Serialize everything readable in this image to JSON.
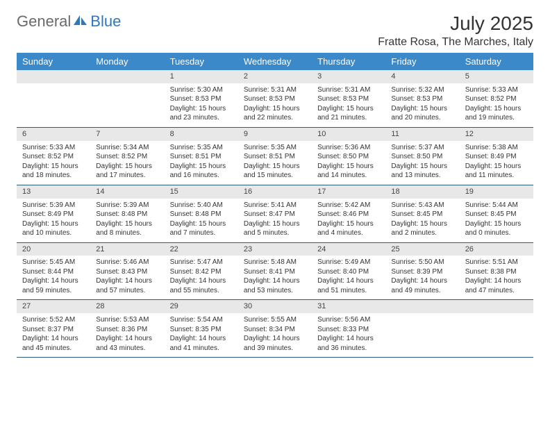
{
  "logo": {
    "text1": "General",
    "text2": "Blue"
  },
  "title": "July 2025",
  "location": "Fratte Rosa, The Marches, Italy",
  "colors": {
    "header_bg": "#3b89c9",
    "header_text": "#ffffff",
    "daynum_bg": "#e8e8e8",
    "week_border": "#2f5a7a",
    "body_text": "#333333",
    "logo_gray": "#6a6a6a",
    "logo_blue": "#2f78bd",
    "background": "#ffffff"
  },
  "typography": {
    "title_fontsize": 28,
    "location_fontsize": 16,
    "dayheader_fontsize": 13,
    "daynum_fontsize": 11,
    "cell_fontsize": 10,
    "logo_fontsize": 22
  },
  "day_names": [
    "Sunday",
    "Monday",
    "Tuesday",
    "Wednesday",
    "Thursday",
    "Friday",
    "Saturday"
  ],
  "weeks": [
    [
      null,
      null,
      {
        "n": "1",
        "sr": "Sunrise: 5:30 AM",
        "ss": "Sunset: 8:53 PM",
        "d1": "Daylight: 15 hours",
        "d2": "and 23 minutes."
      },
      {
        "n": "2",
        "sr": "Sunrise: 5:31 AM",
        "ss": "Sunset: 8:53 PM",
        "d1": "Daylight: 15 hours",
        "d2": "and 22 minutes."
      },
      {
        "n": "3",
        "sr": "Sunrise: 5:31 AM",
        "ss": "Sunset: 8:53 PM",
        "d1": "Daylight: 15 hours",
        "d2": "and 21 minutes."
      },
      {
        "n": "4",
        "sr": "Sunrise: 5:32 AM",
        "ss": "Sunset: 8:53 PM",
        "d1": "Daylight: 15 hours",
        "d2": "and 20 minutes."
      },
      {
        "n": "5",
        "sr": "Sunrise: 5:33 AM",
        "ss": "Sunset: 8:52 PM",
        "d1": "Daylight: 15 hours",
        "d2": "and 19 minutes."
      }
    ],
    [
      {
        "n": "6",
        "sr": "Sunrise: 5:33 AM",
        "ss": "Sunset: 8:52 PM",
        "d1": "Daylight: 15 hours",
        "d2": "and 18 minutes."
      },
      {
        "n": "7",
        "sr": "Sunrise: 5:34 AM",
        "ss": "Sunset: 8:52 PM",
        "d1": "Daylight: 15 hours",
        "d2": "and 17 minutes."
      },
      {
        "n": "8",
        "sr": "Sunrise: 5:35 AM",
        "ss": "Sunset: 8:51 PM",
        "d1": "Daylight: 15 hours",
        "d2": "and 16 minutes."
      },
      {
        "n": "9",
        "sr": "Sunrise: 5:35 AM",
        "ss": "Sunset: 8:51 PM",
        "d1": "Daylight: 15 hours",
        "d2": "and 15 minutes."
      },
      {
        "n": "10",
        "sr": "Sunrise: 5:36 AM",
        "ss": "Sunset: 8:50 PM",
        "d1": "Daylight: 15 hours",
        "d2": "and 14 minutes."
      },
      {
        "n": "11",
        "sr": "Sunrise: 5:37 AM",
        "ss": "Sunset: 8:50 PM",
        "d1": "Daylight: 15 hours",
        "d2": "and 13 minutes."
      },
      {
        "n": "12",
        "sr": "Sunrise: 5:38 AM",
        "ss": "Sunset: 8:49 PM",
        "d1": "Daylight: 15 hours",
        "d2": "and 11 minutes."
      }
    ],
    [
      {
        "n": "13",
        "sr": "Sunrise: 5:39 AM",
        "ss": "Sunset: 8:49 PM",
        "d1": "Daylight: 15 hours",
        "d2": "and 10 minutes."
      },
      {
        "n": "14",
        "sr": "Sunrise: 5:39 AM",
        "ss": "Sunset: 8:48 PM",
        "d1": "Daylight: 15 hours",
        "d2": "and 8 minutes."
      },
      {
        "n": "15",
        "sr": "Sunrise: 5:40 AM",
        "ss": "Sunset: 8:48 PM",
        "d1": "Daylight: 15 hours",
        "d2": "and 7 minutes."
      },
      {
        "n": "16",
        "sr": "Sunrise: 5:41 AM",
        "ss": "Sunset: 8:47 PM",
        "d1": "Daylight: 15 hours",
        "d2": "and 5 minutes."
      },
      {
        "n": "17",
        "sr": "Sunrise: 5:42 AM",
        "ss": "Sunset: 8:46 PM",
        "d1": "Daylight: 15 hours",
        "d2": "and 4 minutes."
      },
      {
        "n": "18",
        "sr": "Sunrise: 5:43 AM",
        "ss": "Sunset: 8:45 PM",
        "d1": "Daylight: 15 hours",
        "d2": "and 2 minutes."
      },
      {
        "n": "19",
        "sr": "Sunrise: 5:44 AM",
        "ss": "Sunset: 8:45 PM",
        "d1": "Daylight: 15 hours",
        "d2": "and 0 minutes."
      }
    ],
    [
      {
        "n": "20",
        "sr": "Sunrise: 5:45 AM",
        "ss": "Sunset: 8:44 PM",
        "d1": "Daylight: 14 hours",
        "d2": "and 59 minutes."
      },
      {
        "n": "21",
        "sr": "Sunrise: 5:46 AM",
        "ss": "Sunset: 8:43 PM",
        "d1": "Daylight: 14 hours",
        "d2": "and 57 minutes."
      },
      {
        "n": "22",
        "sr": "Sunrise: 5:47 AM",
        "ss": "Sunset: 8:42 PM",
        "d1": "Daylight: 14 hours",
        "d2": "and 55 minutes."
      },
      {
        "n": "23",
        "sr": "Sunrise: 5:48 AM",
        "ss": "Sunset: 8:41 PM",
        "d1": "Daylight: 14 hours",
        "d2": "and 53 minutes."
      },
      {
        "n": "24",
        "sr": "Sunrise: 5:49 AM",
        "ss": "Sunset: 8:40 PM",
        "d1": "Daylight: 14 hours",
        "d2": "and 51 minutes."
      },
      {
        "n": "25",
        "sr": "Sunrise: 5:50 AM",
        "ss": "Sunset: 8:39 PM",
        "d1": "Daylight: 14 hours",
        "d2": "and 49 minutes."
      },
      {
        "n": "26",
        "sr": "Sunrise: 5:51 AM",
        "ss": "Sunset: 8:38 PM",
        "d1": "Daylight: 14 hours",
        "d2": "and 47 minutes."
      }
    ],
    [
      {
        "n": "27",
        "sr": "Sunrise: 5:52 AM",
        "ss": "Sunset: 8:37 PM",
        "d1": "Daylight: 14 hours",
        "d2": "and 45 minutes."
      },
      {
        "n": "28",
        "sr": "Sunrise: 5:53 AM",
        "ss": "Sunset: 8:36 PM",
        "d1": "Daylight: 14 hours",
        "d2": "and 43 minutes."
      },
      {
        "n": "29",
        "sr": "Sunrise: 5:54 AM",
        "ss": "Sunset: 8:35 PM",
        "d1": "Daylight: 14 hours",
        "d2": "and 41 minutes."
      },
      {
        "n": "30",
        "sr": "Sunrise: 5:55 AM",
        "ss": "Sunset: 8:34 PM",
        "d1": "Daylight: 14 hours",
        "d2": "and 39 minutes."
      },
      {
        "n": "31",
        "sr": "Sunrise: 5:56 AM",
        "ss": "Sunset: 8:33 PM",
        "d1": "Daylight: 14 hours",
        "d2": "and 36 minutes."
      },
      null,
      null
    ]
  ]
}
